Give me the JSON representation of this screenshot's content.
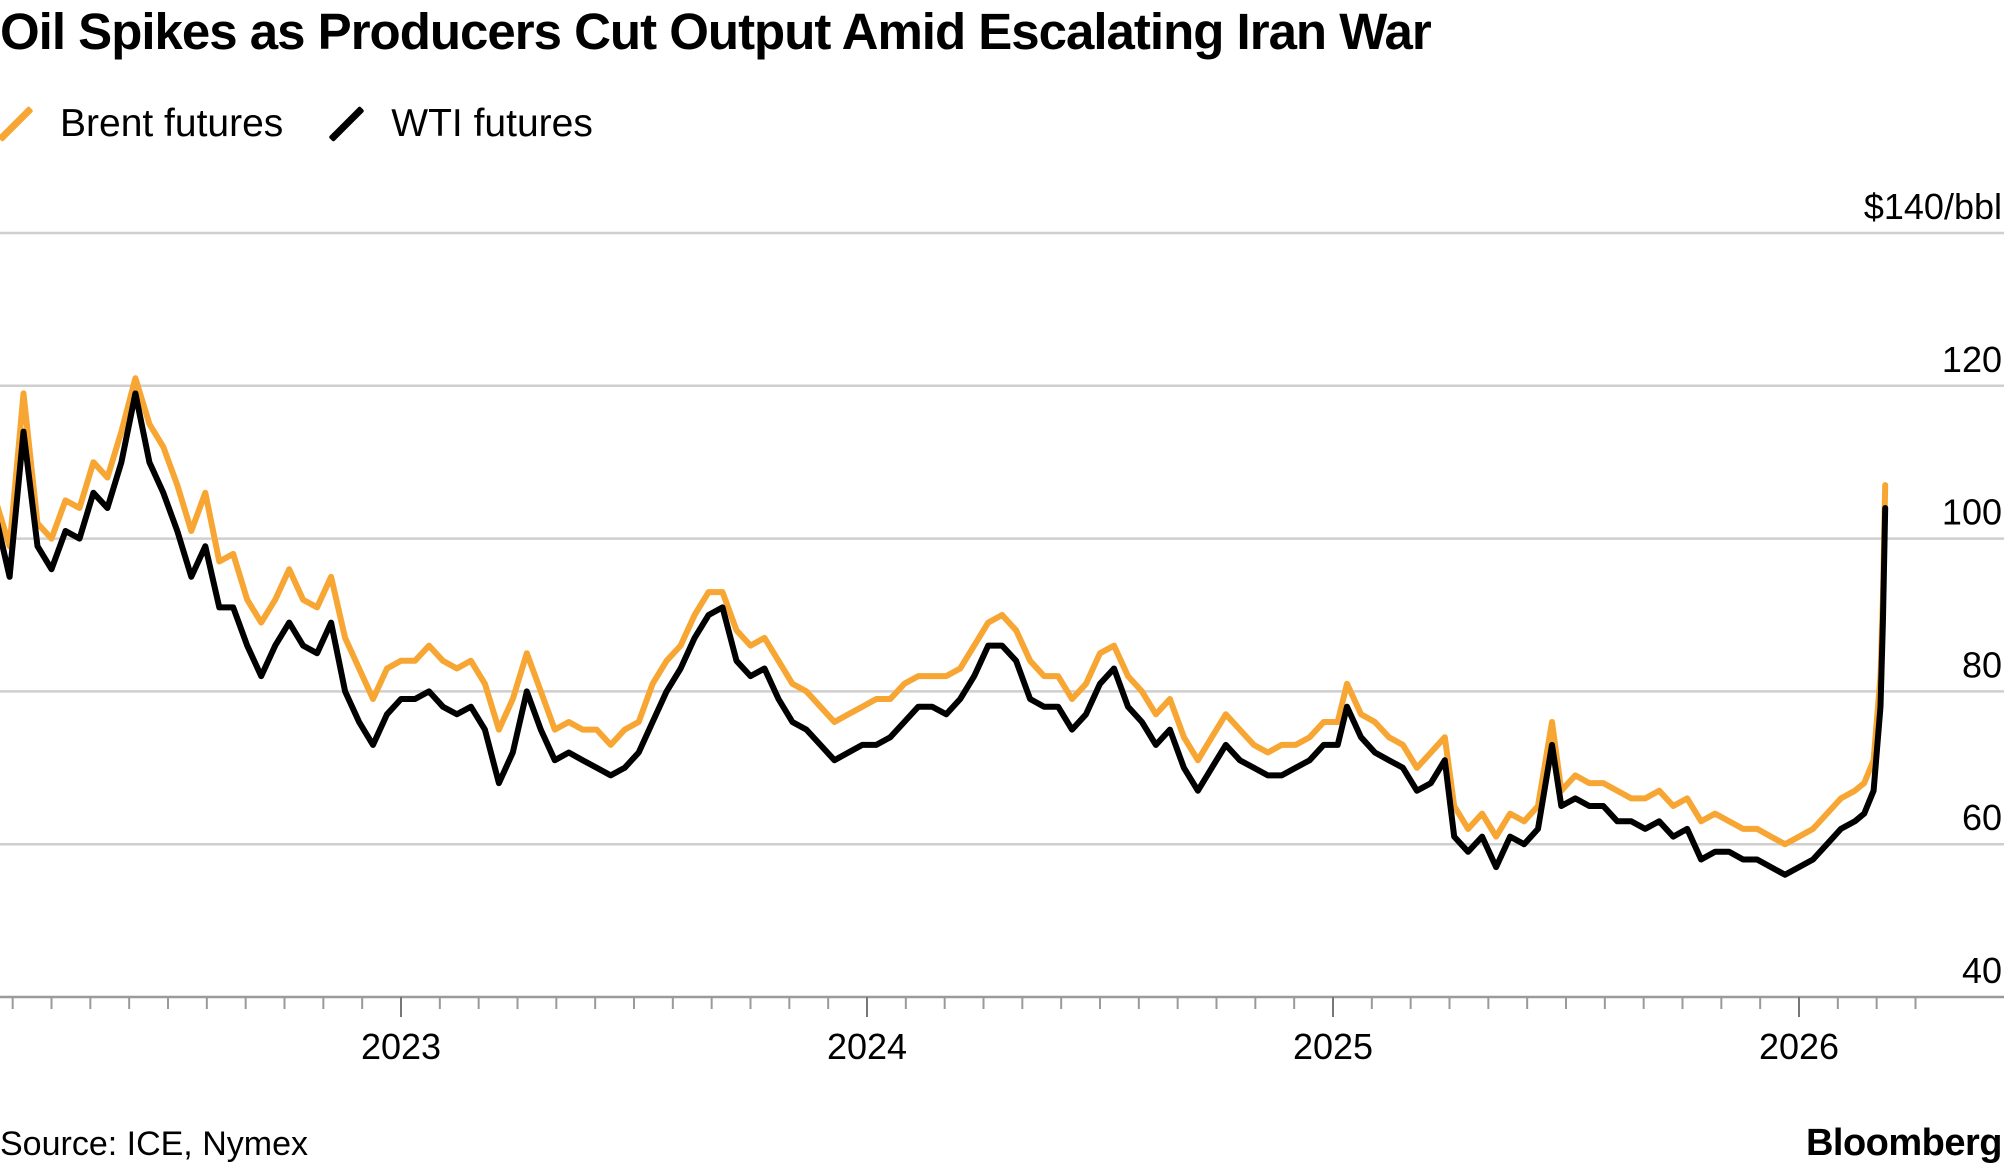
{
  "chart_data": {
    "type": "line",
    "title": "Oil Spikes as Producers Cut Output Amid Escalating Iran War",
    "ylabel": "$140/bbl",
    "yticks": [
      {
        "value": 140,
        "label": "$140/bbl"
      },
      {
        "value": 120,
        "label": "120"
      },
      {
        "value": 100,
        "label": "100"
      },
      {
        "value": 80,
        "label": "80"
      },
      {
        "value": 60,
        "label": "60"
      },
      {
        "value": 40,
        "label": "40"
      }
    ],
    "ylim": [
      40,
      140
    ],
    "xlim": [
      2022.1,
      2026.4
    ],
    "xticks": [
      {
        "value": 2023,
        "label": "2023"
      },
      {
        "value": 2024,
        "label": "2024"
      },
      {
        "value": 2025,
        "label": "2025"
      },
      {
        "value": 2026,
        "label": "2026"
      }
    ],
    "colors": {
      "brent": "#f7a634",
      "wti": "#000000",
      "grid": "#cfcfcf",
      "axis": "#9a9a9a"
    },
    "series": [
      {
        "name": "Brent futures",
        "color": "#f7a634",
        "points": [
          [
            2022.13,
            105
          ],
          [
            2022.16,
            99
          ],
          [
            2022.19,
            119
          ],
          [
            2022.22,
            102
          ],
          [
            2022.25,
            100
          ],
          [
            2022.28,
            105
          ],
          [
            2022.31,
            104
          ],
          [
            2022.34,
            110
          ],
          [
            2022.37,
            108
          ],
          [
            2022.4,
            114
          ],
          [
            2022.43,
            121
          ],
          [
            2022.46,
            115
          ],
          [
            2022.49,
            112
          ],
          [
            2022.52,
            107
          ],
          [
            2022.55,
            101
          ],
          [
            2022.58,
            106
          ],
          [
            2022.61,
            97
          ],
          [
            2022.64,
            98
          ],
          [
            2022.67,
            92
          ],
          [
            2022.7,
            89
          ],
          [
            2022.73,
            92
          ],
          [
            2022.76,
            96
          ],
          [
            2022.79,
            92
          ],
          [
            2022.82,
            91
          ],
          [
            2022.85,
            95
          ],
          [
            2022.88,
            87
          ],
          [
            2022.91,
            83
          ],
          [
            2022.94,
            79
          ],
          [
            2022.97,
            83
          ],
          [
            2023.0,
            84
          ],
          [
            2023.03,
            84
          ],
          [
            2023.06,
            86
          ],
          [
            2023.09,
            84
          ],
          [
            2023.12,
            83
          ],
          [
            2023.15,
            84
          ],
          [
            2023.18,
            81
          ],
          [
            2023.21,
            75
          ],
          [
            2023.24,
            79
          ],
          [
            2023.27,
            85
          ],
          [
            2023.3,
            80
          ],
          [
            2023.33,
            75
          ],
          [
            2023.36,
            76
          ],
          [
            2023.39,
            75
          ],
          [
            2023.42,
            75
          ],
          [
            2023.45,
            73
          ],
          [
            2023.48,
            75
          ],
          [
            2023.51,
            76
          ],
          [
            2023.54,
            81
          ],
          [
            2023.57,
            84
          ],
          [
            2023.6,
            86
          ],
          [
            2023.63,
            90
          ],
          [
            2023.66,
            93
          ],
          [
            2023.69,
            93
          ],
          [
            2023.72,
            88
          ],
          [
            2023.75,
            86
          ],
          [
            2023.78,
            87
          ],
          [
            2023.81,
            84
          ],
          [
            2023.84,
            81
          ],
          [
            2023.87,
            80
          ],
          [
            2023.9,
            78
          ],
          [
            2023.93,
            76
          ],
          [
            2023.96,
            77
          ],
          [
            2023.99,
            78
          ],
          [
            2024.02,
            79
          ],
          [
            2024.05,
            79
          ],
          [
            2024.08,
            81
          ],
          [
            2024.11,
            82
          ],
          [
            2024.14,
            82
          ],
          [
            2024.17,
            82
          ],
          [
            2024.2,
            83
          ],
          [
            2024.23,
            86
          ],
          [
            2024.26,
            89
          ],
          [
            2024.29,
            90
          ],
          [
            2024.32,
            88
          ],
          [
            2024.35,
            84
          ],
          [
            2024.38,
            82
          ],
          [
            2024.41,
            82
          ],
          [
            2024.44,
            79
          ],
          [
            2024.47,
            81
          ],
          [
            2024.5,
            85
          ],
          [
            2024.53,
            86
          ],
          [
            2024.56,
            82
          ],
          [
            2024.59,
            80
          ],
          [
            2024.62,
            77
          ],
          [
            2024.65,
            79
          ],
          [
            2024.68,
            74
          ],
          [
            2024.71,
            71
          ],
          [
            2024.74,
            74
          ],
          [
            2024.77,
            77
          ],
          [
            2024.8,
            75
          ],
          [
            2024.83,
            73
          ],
          [
            2024.86,
            72
          ],
          [
            2024.89,
            73
          ],
          [
            2024.92,
            73
          ],
          [
            2024.95,
            74
          ],
          [
            2024.98,
            76
          ],
          [
            2025.01,
            76
          ],
          [
            2025.03,
            81
          ],
          [
            2025.06,
            77
          ],
          [
            2025.09,
            76
          ],
          [
            2025.12,
            74
          ],
          [
            2025.15,
            73
          ],
          [
            2025.18,
            70
          ],
          [
            2025.21,
            72
          ],
          [
            2025.24,
            74
          ],
          [
            2025.26,
            65
          ],
          [
            2025.29,
            62
          ],
          [
            2025.32,
            64
          ],
          [
            2025.35,
            61
          ],
          [
            2025.38,
            64
          ],
          [
            2025.41,
            63
          ],
          [
            2025.44,
            65
          ],
          [
            2025.47,
            76
          ],
          [
            2025.49,
            67
          ],
          [
            2025.52,
            69
          ],
          [
            2025.55,
            68
          ],
          [
            2025.58,
            68
          ],
          [
            2025.61,
            67
          ],
          [
            2025.64,
            66
          ],
          [
            2025.67,
            66
          ],
          [
            2025.7,
            67
          ],
          [
            2025.73,
            65
          ],
          [
            2025.76,
            66
          ],
          [
            2025.79,
            63
          ],
          [
            2025.82,
            64
          ],
          [
            2025.85,
            63
          ],
          [
            2025.88,
            62
          ],
          [
            2025.91,
            62
          ],
          [
            2025.94,
            61
          ],
          [
            2025.97,
            60
          ],
          [
            2026.0,
            61
          ],
          [
            2026.03,
            62
          ],
          [
            2026.06,
            64
          ],
          [
            2026.09,
            66
          ],
          [
            2026.12,
            67
          ],
          [
            2026.14,
            68
          ],
          [
            2026.16,
            71
          ],
          [
            2026.175,
            82
          ],
          [
            2026.18,
            92
          ],
          [
            2026.185,
            107
          ]
        ]
      },
      {
        "name": "WTI futures",
        "color": "#000000",
        "points": [
          [
            2022.13,
            103
          ],
          [
            2022.16,
            95
          ],
          [
            2022.19,
            114
          ],
          [
            2022.22,
            99
          ],
          [
            2022.25,
            96
          ],
          [
            2022.28,
            101
          ],
          [
            2022.31,
            100
          ],
          [
            2022.34,
            106
          ],
          [
            2022.37,
            104
          ],
          [
            2022.4,
            110
          ],
          [
            2022.43,
            119
          ],
          [
            2022.46,
            110
          ],
          [
            2022.49,
            106
          ],
          [
            2022.52,
            101
          ],
          [
            2022.55,
            95
          ],
          [
            2022.58,
            99
          ],
          [
            2022.61,
            91
          ],
          [
            2022.64,
            91
          ],
          [
            2022.67,
            86
          ],
          [
            2022.7,
            82
          ],
          [
            2022.73,
            86
          ],
          [
            2022.76,
            89
          ],
          [
            2022.79,
            86
          ],
          [
            2022.82,
            85
          ],
          [
            2022.85,
            89
          ],
          [
            2022.88,
            80
          ],
          [
            2022.91,
            76
          ],
          [
            2022.94,
            73
          ],
          [
            2022.97,
            77
          ],
          [
            2023.0,
            79
          ],
          [
            2023.03,
            79
          ],
          [
            2023.06,
            80
          ],
          [
            2023.09,
            78
          ],
          [
            2023.12,
            77
          ],
          [
            2023.15,
            78
          ],
          [
            2023.18,
            75
          ],
          [
            2023.21,
            68
          ],
          [
            2023.24,
            72
          ],
          [
            2023.27,
            80
          ],
          [
            2023.3,
            75
          ],
          [
            2023.33,
            71
          ],
          [
            2023.36,
            72
          ],
          [
            2023.39,
            71
          ],
          [
            2023.42,
            70
          ],
          [
            2023.45,
            69
          ],
          [
            2023.48,
            70
          ],
          [
            2023.51,
            72
          ],
          [
            2023.54,
            76
          ],
          [
            2023.57,
            80
          ],
          [
            2023.6,
            83
          ],
          [
            2023.63,
            87
          ],
          [
            2023.66,
            90
          ],
          [
            2023.69,
            91
          ],
          [
            2023.72,
            84
          ],
          [
            2023.75,
            82
          ],
          [
            2023.78,
            83
          ],
          [
            2023.81,
            79
          ],
          [
            2023.84,
            76
          ],
          [
            2023.87,
            75
          ],
          [
            2023.9,
            73
          ],
          [
            2023.93,
            71
          ],
          [
            2023.96,
            72
          ],
          [
            2023.99,
            73
          ],
          [
            2024.02,
            73
          ],
          [
            2024.05,
            74
          ],
          [
            2024.08,
            76
          ],
          [
            2024.11,
            78
          ],
          [
            2024.14,
            78
          ],
          [
            2024.17,
            77
          ],
          [
            2024.2,
            79
          ],
          [
            2024.23,
            82
          ],
          [
            2024.26,
            86
          ],
          [
            2024.29,
            86
          ],
          [
            2024.32,
            84
          ],
          [
            2024.35,
            79
          ],
          [
            2024.38,
            78
          ],
          [
            2024.41,
            78
          ],
          [
            2024.44,
            75
          ],
          [
            2024.47,
            77
          ],
          [
            2024.5,
            81
          ],
          [
            2024.53,
            83
          ],
          [
            2024.56,
            78
          ],
          [
            2024.59,
            76
          ],
          [
            2024.62,
            73
          ],
          [
            2024.65,
            75
          ],
          [
            2024.68,
            70
          ],
          [
            2024.71,
            67
          ],
          [
            2024.74,
            70
          ],
          [
            2024.77,
            73
          ],
          [
            2024.8,
            71
          ],
          [
            2024.83,
            70
          ],
          [
            2024.86,
            69
          ],
          [
            2024.89,
            69
          ],
          [
            2024.92,
            70
          ],
          [
            2024.95,
            71
          ],
          [
            2024.98,
            73
          ],
          [
            2025.01,
            73
          ],
          [
            2025.03,
            78
          ],
          [
            2025.06,
            74
          ],
          [
            2025.09,
            72
          ],
          [
            2025.12,
            71
          ],
          [
            2025.15,
            70
          ],
          [
            2025.18,
            67
          ],
          [
            2025.21,
            68
          ],
          [
            2025.24,
            71
          ],
          [
            2025.26,
            61
          ],
          [
            2025.29,
            59
          ],
          [
            2025.32,
            61
          ],
          [
            2025.35,
            57
          ],
          [
            2025.38,
            61
          ],
          [
            2025.41,
            60
          ],
          [
            2025.44,
            62
          ],
          [
            2025.47,
            73
          ],
          [
            2025.49,
            65
          ],
          [
            2025.52,
            66
          ],
          [
            2025.55,
            65
          ],
          [
            2025.58,
            65
          ],
          [
            2025.61,
            63
          ],
          [
            2025.64,
            63
          ],
          [
            2025.67,
            62
          ],
          [
            2025.7,
            63
          ],
          [
            2025.73,
            61
          ],
          [
            2025.76,
            62
          ],
          [
            2025.79,
            58
          ],
          [
            2025.82,
            59
          ],
          [
            2025.85,
            59
          ],
          [
            2025.88,
            58
          ],
          [
            2025.91,
            58
          ],
          [
            2025.94,
            57
          ],
          [
            2025.97,
            56
          ],
          [
            2026.0,
            57
          ],
          [
            2026.03,
            58
          ],
          [
            2026.06,
            60
          ],
          [
            2026.09,
            62
          ],
          [
            2026.12,
            63
          ],
          [
            2026.14,
            64
          ],
          [
            2026.16,
            67
          ],
          [
            2026.175,
            78
          ],
          [
            2026.18,
            89
          ],
          [
            2026.185,
            104
          ]
        ]
      }
    ]
  },
  "footer": {
    "source": "Source: ICE, Nymex",
    "brand": "Bloomberg"
  }
}
